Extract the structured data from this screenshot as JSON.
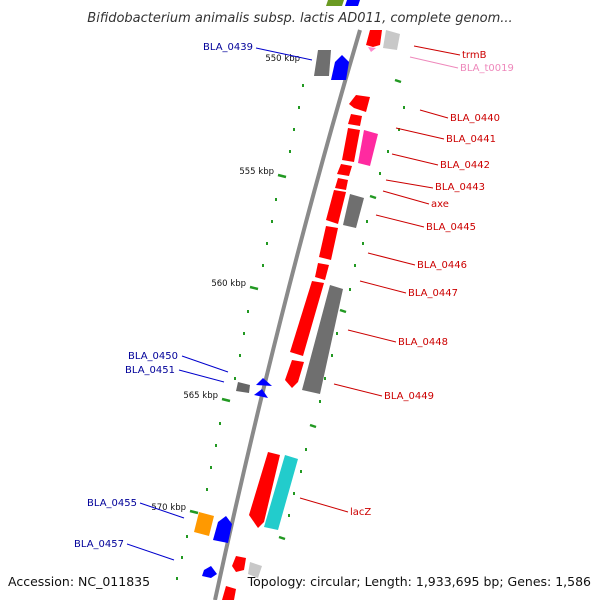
{
  "title": "Bifidobacterium animalis subsp. lactis AD011, complete genom...",
  "footer": {
    "accession": "Accession: NC_011835",
    "stats": "Topology: circular; Length: 1,933,695 bp; Genes: 1,586"
  },
  "ticks": [
    "550 kbp",
    "555 kbp",
    "560 kbp",
    "565 kbp",
    "570 kbp"
  ],
  "colors": {
    "backbone": "#8a8a8a",
    "red_gene": "#ff0000",
    "gray_gene": "#7a7a7a",
    "blue_gene": "#0000ff",
    "pink_gene": "#ff2aa0",
    "cyan_gene": "#22cccc",
    "orange_gene": "#ff9900",
    "lightgray_gene": "#c8c8c8",
    "green_tick": "#229922",
    "blue_label": "#000099",
    "red_label": "#cc0000",
    "pink_label": "#ee88bb"
  },
  "labels": {
    "left": [
      "BLA_0439",
      "BLA_0450",
      "BLA_0451",
      "BLA_0455",
      "BLA_0457"
    ],
    "right": [
      "trmB",
      "BLA_t0019",
      "BLA_0440",
      "BLA_0441",
      "BLA_0442",
      "BLA_0443",
      "axe",
      "BLA_0445",
      "BLA_0446",
      "BLA_0447",
      "BLA_0448",
      "BLA_0449",
      "lacZ"
    ]
  }
}
